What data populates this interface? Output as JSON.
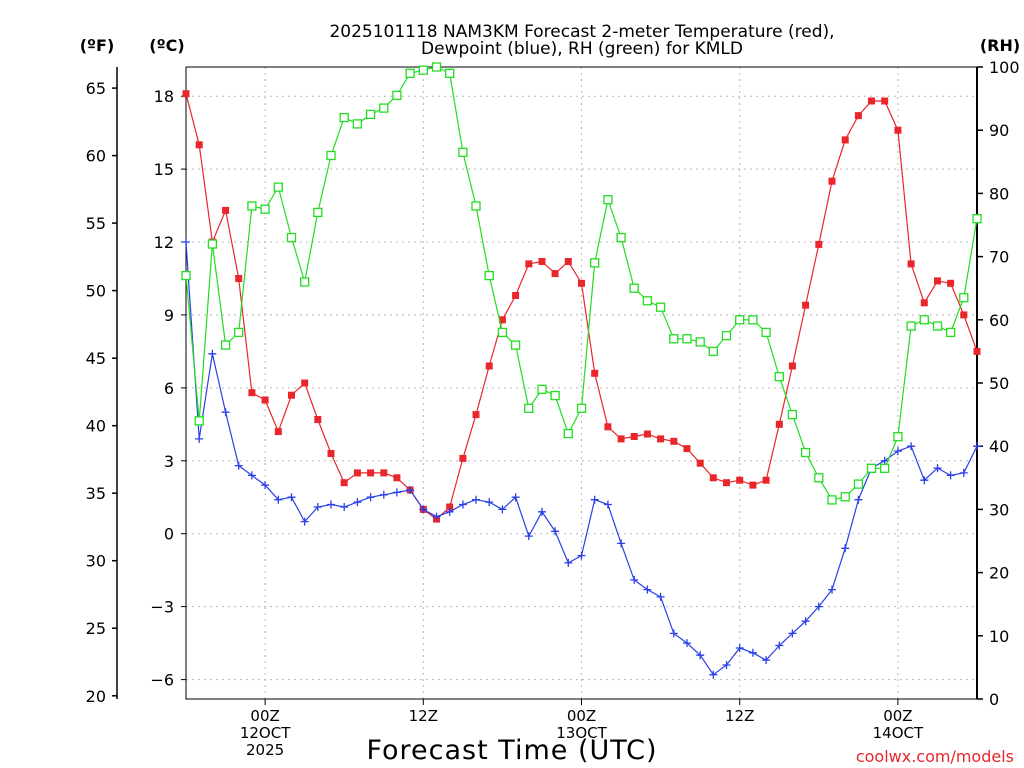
{
  "title": {
    "line1": "2025101118 NAM3KM Forecast 2-meter Temperature (red),",
    "line2": "Dewpoint (blue), RH (green) for KMLD"
  },
  "axis_units": {
    "left_outer": "(ºF)",
    "left_inner": "(ºC)",
    "right": "(RH)"
  },
  "xlabel": "Forecast Time (UTC)",
  "credit": "coolwx.com/models",
  "chart_data": {
    "type": "line",
    "title": "2025101118 NAM3KM Forecast 2-meter Temperature (red), Dewpoint (blue), RH (green) for KMLD",
    "xlabel": "Forecast Time (UTC)",
    "x_hours_from_init": [
      0,
      1,
      2,
      3,
      4,
      5,
      6,
      7,
      8,
      9,
      10,
      11,
      12,
      13,
      14,
      15,
      16,
      17,
      18,
      19,
      20,
      21,
      22,
      23,
      24,
      25,
      26,
      27,
      28,
      29,
      30,
      31,
      32,
      33,
      34,
      35,
      36,
      37,
      38,
      39,
      40,
      41,
      42,
      43,
      44,
      45,
      46,
      47,
      48,
      49,
      50,
      51,
      52,
      53,
      54,
      55,
      56,
      57,
      58,
      59,
      60
    ],
    "xlim": [
      0,
      60
    ],
    "x_ticks": [
      {
        "hour": 6,
        "lines": [
          "00Z",
          "12OCT",
          "2025"
        ]
      },
      {
        "hour": 18,
        "lines": [
          "12Z"
        ]
      },
      {
        "hour": 30,
        "lines": [
          "00Z",
          "13OCT"
        ]
      },
      {
        "hour": 42,
        "lines": [
          "12Z"
        ]
      },
      {
        "hour": 54,
        "lines": [
          "00Z",
          "14OCT"
        ]
      }
    ],
    "celsius_axis": {
      "ylim": [
        -6.8,
        19.2
      ],
      "ticks": [
        18,
        15,
        12,
        9,
        6,
        3,
        0,
        -3,
        -6
      ]
    },
    "fahrenheit_axis": {
      "ticks": [
        65,
        60,
        55,
        50,
        45,
        40,
        35,
        30,
        25,
        20
      ]
    },
    "rh_axis": {
      "ylim": [
        0,
        100
      ],
      "ticks": [
        100,
        90,
        80,
        70,
        60,
        50,
        40,
        30,
        20,
        10,
        0
      ]
    },
    "series": [
      {
        "name": "Temperature (red)",
        "axis": "C",
        "color": "#e8262c",
        "marker": "filled-square",
        "values": [
          18.1,
          16.0,
          12.0,
          13.3,
          10.5,
          5.8,
          5.5,
          4.2,
          5.7,
          6.2,
          4.7,
          3.3,
          2.1,
          2.5,
          2.5,
          2.5,
          2.3,
          1.8,
          1.0,
          0.6,
          1.1,
          3.1,
          4.9,
          6.9,
          8.8,
          9.8,
          11.1,
          11.2,
          10.7,
          11.2,
          10.3,
          6.6,
          4.4,
          3.9,
          4.0,
          4.1,
          3.9,
          3.8,
          3.5,
          2.9,
          2.3,
          2.1,
          2.2,
          2.0,
          2.2,
          4.5,
          6.9,
          9.4,
          11.9,
          14.5,
          16.2,
          17.2,
          17.8,
          17.8,
          16.6,
          11.1,
          9.5,
          10.4,
          10.3,
          9.0,
          7.5
        ]
      },
      {
        "name": "Dewpoint (blue)",
        "axis": "C",
        "color": "#2a3fe6",
        "marker": "plus",
        "values": [
          12.0,
          3.9,
          7.4,
          5.0,
          2.8,
          2.4,
          2.0,
          1.4,
          1.5,
          0.5,
          1.1,
          1.2,
          1.1,
          1.3,
          1.5,
          1.6,
          1.7,
          1.8,
          1.0,
          0.7,
          0.9,
          1.2,
          1.4,
          1.3,
          1.0,
          1.5,
          -0.1,
          0.9,
          0.1,
          -1.2,
          -0.9,
          1.4,
          1.2,
          -0.4,
          -1.9,
          -2.3,
          -2.6,
          -4.1,
          -4.5,
          -5.0,
          -5.8,
          -5.4,
          -4.7,
          -4.9,
          -5.2,
          -4.6,
          -4.1,
          -3.6,
          -3.0,
          -2.3,
          -0.6,
          1.4,
          2.7,
          3.0,
          3.4,
          3.6,
          2.2,
          2.7,
          2.4,
          2.5,
          3.6
        ]
      },
      {
        "name": "RH (green)",
        "axis": "RH",
        "color": "#22dd22",
        "marker": "open-square",
        "values": [
          67,
          44,
          72,
          56,
          58,
          78,
          77.5,
          81,
          73,
          66,
          77,
          86,
          92,
          91,
          92.5,
          93.5,
          95.5,
          99,
          99.5,
          100,
          99,
          86.5,
          78,
          67,
          58,
          56,
          46,
          49,
          48,
          42,
          46,
          69,
          79,
          73,
          65,
          63,
          62,
          57,
          57,
          56.5,
          55,
          57.5,
          60,
          60,
          58,
          51,
          45,
          39,
          35,
          31.5,
          32,
          34,
          36.5,
          36.5,
          41.5,
          59,
          60,
          59,
          58,
          63.5,
          76
        ]
      }
    ]
  }
}
